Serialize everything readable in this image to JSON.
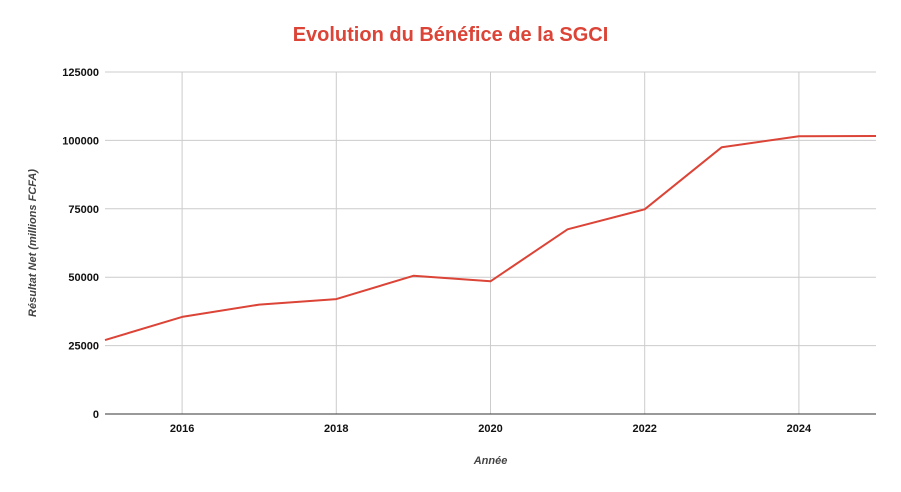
{
  "chart_data": {
    "type": "line",
    "title": "Evolution du Bénéfice de la SGCI",
    "xlabel": "Année",
    "ylabel": "Résultat Net (millions FCFA)",
    "x": [
      2015,
      2016,
      2017,
      2018,
      2019,
      2020,
      2021,
      2022,
      2023,
      2024,
      2025
    ],
    "series": [
      {
        "values": [
          27000,
          35500,
          40000,
          42000,
          50500,
          48500,
          67500,
          74800,
          97500,
          101500,
          101600
        ]
      }
    ],
    "xlim": [
      2015,
      2025
    ],
    "ylim": [
      0,
      125000
    ],
    "x_ticks": [
      "2016",
      "2018",
      "2020",
      "2022",
      "2024"
    ],
    "y_ticks": [
      "0",
      "25000",
      "50000",
      "75000",
      "100000",
      "125000"
    ],
    "grid": true,
    "line_color": "#db4437",
    "title_color": "#db4437"
  }
}
